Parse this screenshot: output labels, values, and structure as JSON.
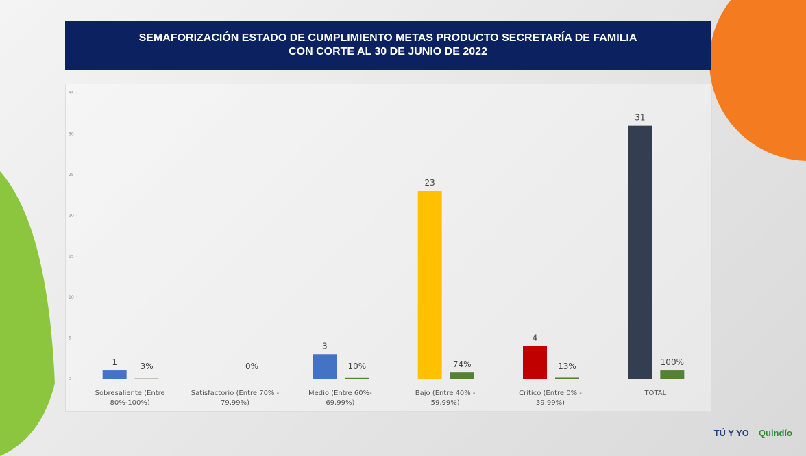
{
  "title_lines": [
    "SEMAFORIZACIÓN  ESTADO DE CUMPLIMIENTO METAS PRODUCTO  SECRETARÍA DE FAMILIA",
    "CON CORTE AL  30 DE JUNIO DE 2022"
  ],
  "chart_data": {
    "type": "bar",
    "categories": [
      "Sobresaliente  (Entre 80%-100%)",
      "Satisfactorio (Entre 70% - 79,99%)",
      "Medio (Entre 60%- 69,99%)",
      "Bajo (Entre 40% - 59,99%)",
      "Crítico (Entre 0% - 39,99%)",
      "TOTAL"
    ],
    "series": [
      {
        "colors": [
          "#4472c4",
          "#4472c4",
          "#4472c4",
          "#ffc000",
          "#c00000",
          "#333f50"
        ],
        "values": [
          1,
          0,
          3,
          23,
          4,
          31
        ],
        "value_labels": [
          "1",
          null,
          "3",
          "23",
          "4",
          "31"
        ]
      },
      {
        "color": "#548235",
        "values": [
          0.03,
          0,
          0.1,
          0.74,
          0.13,
          1
        ],
        "value_labels": [
          "3%",
          "0%",
          "10%",
          "74%",
          "13%",
          "100%"
        ]
      }
    ],
    "ylim": [
      0,
      35
    ],
    "yticks": [
      0,
      5,
      10,
      15,
      20,
      25,
      30,
      35
    ]
  },
  "footer": {
    "logos": [
      "TÚ Y YO",
      "Quindío"
    ]
  }
}
